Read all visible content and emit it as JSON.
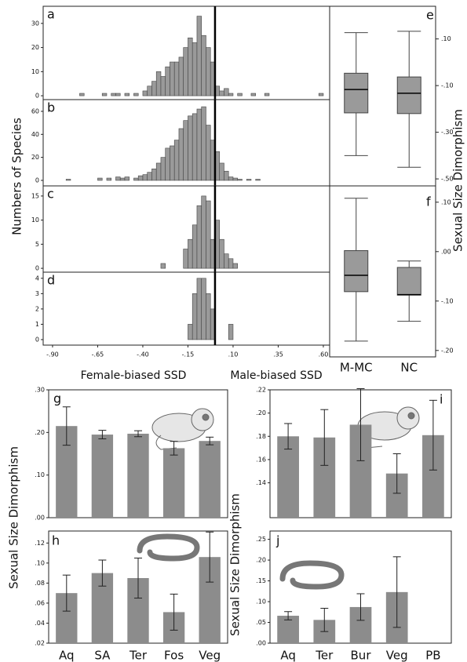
{
  "chart_data": [
    {
      "type": "histogram",
      "panel": "a",
      "ylabel": "Numbers of Species",
      "bins": [
        -0.75,
        -0.725,
        -0.7,
        -0.675,
        -0.65,
        -0.625,
        -0.6,
        -0.575,
        -0.55,
        -0.525,
        -0.5,
        -0.475,
        -0.45,
        -0.425,
        -0.4,
        -0.375,
        -0.35,
        -0.325,
        -0.3,
        -0.275,
        -0.25,
        -0.225,
        -0.2,
        -0.175,
        -0.15,
        -0.125,
        -0.1,
        -0.075,
        -0.05,
        -0.025,
        0,
        0.025,
        0.05,
        0.075,
        0.1,
        0.125,
        0.15,
        0.175,
        0.2,
        0.225,
        0.25,
        0.275,
        0.3,
        0.325,
        0.35,
        0.375,
        0.4,
        0.425,
        0.45,
        0.475,
        0.5,
        0.525,
        0.55,
        0.575,
        0.6
      ],
      "counts": [
        1,
        0,
        0,
        0,
        0,
        1,
        0,
        1,
        1,
        0,
        1,
        0,
        1,
        0,
        2,
        4,
        6,
        10,
        8,
        12,
        14,
        14,
        16,
        20,
        24,
        22,
        33,
        25,
        20,
        14,
        4,
        2,
        3,
        1,
        0,
        1,
        0,
        0,
        1,
        0,
        0,
        1,
        0,
        0,
        0,
        0,
        0,
        0,
        0,
        0,
        0,
        0,
        0,
        1
      ],
      "xlim": [
        -0.952,
        0.635
      ],
      "ylim": [
        -1.6,
        37.1
      ],
      "yticks": [
        0,
        10,
        20,
        30
      ],
      "reference_line": 0,
      "color": "#9a9a9a"
    },
    {
      "type": "histogram",
      "panel": "b",
      "bins": [
        -0.825,
        -0.8,
        -0.775,
        -0.75,
        -0.725,
        -0.7,
        -0.675,
        -0.65,
        -0.625,
        -0.6,
        -0.575,
        -0.55,
        -0.525,
        -0.5,
        -0.475,
        -0.45,
        -0.425,
        -0.4,
        -0.375,
        -0.35,
        -0.325,
        -0.3,
        -0.275,
        -0.25,
        -0.225,
        -0.2,
        -0.175,
        -0.15,
        -0.125,
        -0.1,
        -0.075,
        -0.05,
        -0.025,
        0,
        0.025,
        0.05,
        0.075,
        0.1,
        0.125,
        0.15,
        0.175,
        0.2,
        0.225,
        0.25
      ],
      "counts": [
        1,
        0,
        0,
        0,
        0,
        0,
        0,
        2,
        0,
        2,
        0,
        3,
        2,
        3,
        0,
        2,
        4,
        5,
        7,
        10,
        15,
        20,
        28,
        30,
        35,
        45,
        52,
        56,
        58,
        62,
        64,
        48,
        35,
        25,
        15,
        8,
        3,
        2,
        1,
        0,
        1,
        0,
        1
      ],
      "xlim": [
        -0.952,
        0.635
      ],
      "ylim": [
        -4.8,
        70.2
      ],
      "yticks": [
        0,
        20,
        40,
        60
      ],
      "reference_line": 0,
      "color": "#9a9a9a"
    },
    {
      "type": "histogram",
      "panel": "c",
      "bins": [
        -0.3,
        -0.275,
        -0.25,
        -0.225,
        -0.2,
        -0.175,
        -0.15,
        -0.125,
        -0.1,
        -0.075,
        -0.05,
        -0.025,
        0,
        0.025,
        0.05,
        0.075,
        0.1,
        0.125
      ],
      "counts": [
        1,
        0,
        0,
        0,
        0,
        4,
        6,
        9,
        13,
        15,
        14,
        6,
        10,
        6,
        3,
        2,
        1
      ],
      "xlim": [
        -0.952,
        0.635
      ],
      "ylim": [
        -0.8,
        17.1
      ],
      "yticks": [
        0,
        5,
        10,
        15
      ],
      "reference_line": 0,
      "color": "#9a9a9a"
    },
    {
      "type": "histogram",
      "panel": "d",
      "bins": [
        -0.15,
        -0.125,
        -0.1,
        -0.075,
        -0.05,
        -0.025,
        0,
        0.025,
        0.05,
        0.075,
        0.1
      ],
      "counts": [
        1,
        3,
        4,
        4,
        3,
        2,
        0,
        0,
        0,
        1
      ],
      "xlim": [
        -0.952,
        0.635
      ],
      "ylim": [
        -0.36,
        4.4
      ],
      "yticks": [
        0,
        1,
        2,
        3,
        4
      ],
      "reference_line": 0,
      "color": "#9a9a9a",
      "xticks": [
        {
          "value": -0.9,
          "label": "-.90"
        },
        {
          "value": -0.65,
          "label": "-.65"
        },
        {
          "value": -0.4,
          "label": "-.40"
        },
        {
          "value": -0.15,
          "label": "-.15"
        },
        {
          "value": 0.1,
          "label": ".10"
        },
        {
          "value": 0.35,
          "label": ".35"
        },
        {
          "value": 0.6,
          "label": ".60"
        }
      ],
      "xlabel_left": "Female-biased SSD",
      "xlabel_right": "Male-biased SSD"
    },
    {
      "type": "boxplot",
      "panel": "e",
      "ylabel": "Sexual Size Dimorphism",
      "color": "#9a9a9a",
      "boxes": [
        {
          "whisker_low": -0.4,
          "q1": -0.217,
          "median": -0.117,
          "q3": -0.047,
          "whisker_high": 0.127
        },
        {
          "whisker_low": -0.45,
          "q1": -0.22,
          "median": -0.133,
          "q3": -0.063,
          "whisker_high": 0.133
        }
      ],
      "ylim": [
        -0.53,
        0.24
      ],
      "yticks": [
        {
          "value": 0.1,
          "label": ".10"
        },
        {
          "value": -0.1,
          "label": "-.10"
        },
        {
          "value": -0.3,
          "label": "-.30"
        },
        {
          "value": -0.5,
          "label": "-.50"
        }
      ]
    },
    {
      "type": "boxplot",
      "panel": "f",
      "categories": [
        "M-MC",
        "NC"
      ],
      "color": "#9a9a9a",
      "boxes": [
        {
          "whisker_low": -0.181,
          "q1": -0.081,
          "median": -0.048,
          "q3": 0.002,
          "whisker_high": 0.108
        },
        {
          "whisker_low": -0.141,
          "q1": -0.088,
          "median": -0.087,
          "q3": -0.032,
          "whisker_high": -0.019
        }
      ],
      "ylim": [
        -0.213,
        0.133
      ],
      "yticks": [
        {
          "value": 0.1,
          "label": ".10"
        },
        {
          "value": 0,
          "label": ".00"
        },
        {
          "value": -0.1,
          "label": "-.10"
        },
        {
          "value": -0.2,
          "label": "-.20"
        }
      ]
    },
    {
      "type": "bar",
      "panel": "g",
      "ylabel": "Sexual Size Dimorphism",
      "color": "#8c8c8c",
      "values": [
        0.215,
        0.195,
        0.197,
        0.163,
        0.18
      ],
      "errors": [
        0.045,
        0.01,
        0.007,
        0.016,
        0.009
      ],
      "ylim": [
        0,
        0.3
      ],
      "yticks": [
        {
          "value": 0,
          "label": ".00"
        },
        {
          "value": 0.1,
          "label": ".10"
        },
        {
          "value": 0.2,
          "label": ".20"
        },
        {
          "value": 0.3,
          "label": ".30"
        }
      ]
    },
    {
      "type": "bar",
      "panel": "h",
      "categories": [
        "Aq",
        "SA",
        "Ter",
        "Fos",
        "Veg"
      ],
      "color": "#8c8c8c",
      "values": [
        0.07,
        0.09,
        0.085,
        0.051,
        0.106
      ],
      "errors": [
        0.018,
        0.013,
        0.02,
        0.018,
        0.025
      ],
      "ylim": [
        0.02,
        0.132
      ],
      "yticks": [
        {
          "value": 0.02,
          "label": ".02"
        },
        {
          "value": 0.04,
          "label": ".04"
        },
        {
          "value": 0.06,
          "label": ".06"
        },
        {
          "value": 0.08,
          "label": ".08"
        },
        {
          "value": 0.1,
          "label": ".10"
        },
        {
          "value": 0.12,
          "label": ".12"
        }
      ]
    },
    {
      "type": "bar",
      "panel": "i",
      "color": "#8c8c8c",
      "values": [
        0.18,
        0.179,
        0.19,
        0.148,
        0.181
      ],
      "errors": [
        0.011,
        0.024,
        0.031,
        0.017,
        0.03
      ],
      "ylim": [
        0.11,
        0.22
      ],
      "yticks": [
        {
          "value": 0.14,
          "label": ".14"
        },
        {
          "value": 0.16,
          "label": ".16"
        },
        {
          "value": 0.18,
          "label": ".18"
        },
        {
          "value": 0.2,
          "label": ".20"
        },
        {
          "value": 0.22,
          "label": ".22"
        }
      ]
    },
    {
      "type": "bar",
      "panel": "j",
      "ylabel": "Sexual Size Dimorphism",
      "categories": [
        "Aq",
        "Ter",
        "Bur",
        "Veg",
        "PB"
      ],
      "color": "#8c8c8c",
      "values": [
        0.066,
        0.056,
        0.087,
        0.123,
        null
      ],
      "errors": [
        0.01,
        0.028,
        0.032,
        0.085,
        null
      ],
      "ylim": [
        0,
        0.27
      ],
      "yticks": [
        {
          "value": 0,
          "label": ".00"
        },
        {
          "value": 0.05,
          "label": ".05"
        },
        {
          "value": 0.1,
          "label": ".10"
        },
        {
          "value": 0.15,
          "label": ".15"
        },
        {
          "value": 0.2,
          "label": ".20"
        },
        {
          "value": 0.25,
          "label": ".25"
        }
      ]
    }
  ]
}
